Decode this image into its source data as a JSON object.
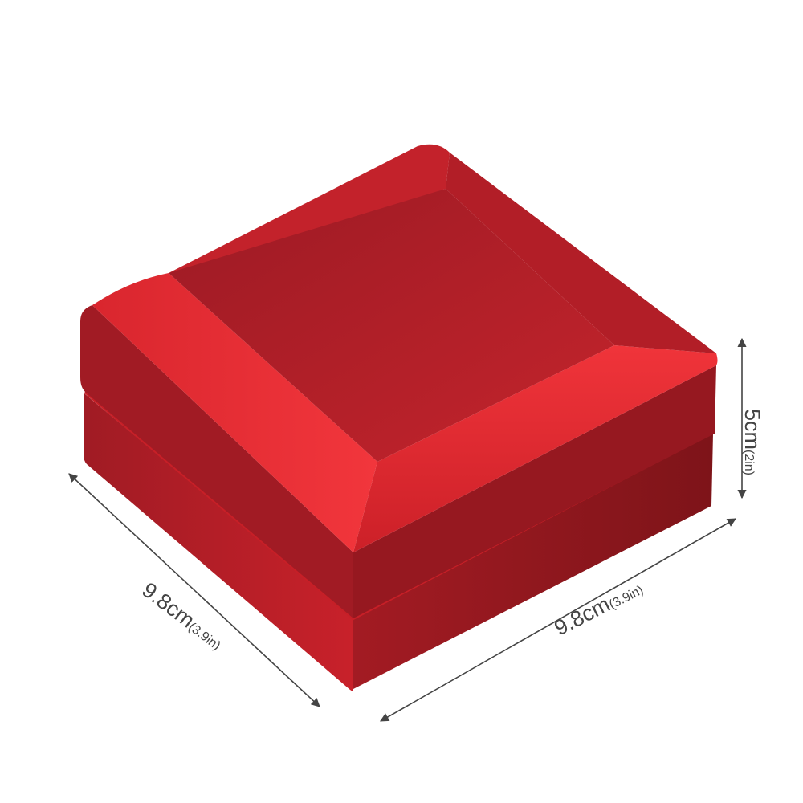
{
  "product": {
    "name": "red jewelry box",
    "colors": {
      "top": "#b51f2a",
      "highlight": "#f0333a",
      "base": "#8e1920",
      "background": "#ffffff",
      "dimension_line": "#444444"
    }
  },
  "dimensions": {
    "length": {
      "metric": "9.8cm",
      "imperial": "(3.9in)"
    },
    "width": {
      "metric": "9.8cm",
      "imperial": "(3.9in)"
    },
    "height": {
      "metric": "5cm",
      "imperial": "(2in)"
    }
  }
}
